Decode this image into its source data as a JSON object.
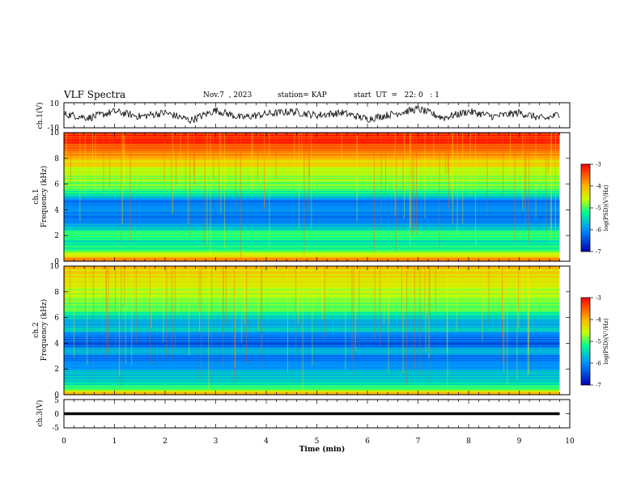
{
  "header": {
    "title": "VLF Spectra",
    "date": "Nov.7  , 2023",
    "station": "station= KAP",
    "start": "start  UT  =   22: 0   : 1"
  },
  "chart_data": [
    {
      "type": "line",
      "panel": "ch1-waveform",
      "ylabel": "ch.1(V)",
      "ylim": [
        -10,
        10
      ],
      "yticks": [
        "10",
        "-10"
      ],
      "x": [
        0,
        0.5,
        1,
        1.5,
        2,
        2.5,
        3,
        3.5,
        4,
        4.5,
        5,
        5.5,
        6,
        6.5,
        7,
        7.5,
        8,
        8.5,
        9,
        9.5,
        9.8
      ],
      "values": [
        1,
        -2,
        3,
        -1,
        2,
        -4,
        4,
        -2,
        1,
        3,
        0,
        2,
        -3,
        1,
        5,
        -2,
        3,
        -1,
        2,
        -3,
        1
      ]
    },
    {
      "type": "heatmap",
      "panel": "ch1-spectrogram",
      "ylabel": "ch.1\nFrequency (kHz)",
      "ylabel_line1": "ch.1",
      "ylabel_line2": "Frequency (kHz)",
      "ylim": [
        0,
        10
      ],
      "yticks": [
        "0",
        "2",
        "4",
        "6",
        "8",
        "10"
      ],
      "color_levels_by_frequency_kHz": [
        [
          0.0,
          -3.5
        ],
        [
          0.5,
          -4.6
        ],
        [
          1.0,
          -5.2
        ],
        [
          1.6,
          -5.4
        ],
        [
          2.1,
          -4.9
        ],
        [
          2.6,
          -5.7
        ],
        [
          3.0,
          -6.0
        ],
        [
          3.5,
          -6.2
        ],
        [
          4.0,
          -5.8
        ],
        [
          4.6,
          -6.3
        ],
        [
          5.1,
          -5.5
        ],
        [
          5.6,
          -5.0
        ],
        [
          6.1,
          -4.9
        ],
        [
          6.6,
          -4.7
        ],
        [
          7.1,
          -4.6
        ],
        [
          7.6,
          -4.3
        ],
        [
          8.1,
          -4.0
        ],
        [
          8.6,
          -3.6
        ],
        [
          9.2,
          -3.3
        ],
        [
          10.0,
          -3.2
        ]
      ],
      "colorbar": {
        "label": "log(PSD)(V²/Hz)",
        "range": [
          -7,
          -3
        ],
        "ticks": [
          "-3",
          "-4",
          "-5",
          "-6",
          "-7"
        ]
      }
    },
    {
      "type": "heatmap",
      "panel": "ch2-spectrogram",
      "ylabel": "ch.2\nFrequency (kHz)",
      "ylabel_line1": "ch.2",
      "ylabel_line2": "Frequency (kHz)",
      "ylim": [
        0,
        10
      ],
      "yticks": [
        "0",
        "2",
        "4",
        "6",
        "8",
        "10"
      ],
      "color_levels_by_frequency_kHz": [
        [
          0.0,
          -3.8
        ],
        [
          0.5,
          -5.2
        ],
        [
          1.0,
          -5.5
        ],
        [
          1.6,
          -5.6
        ],
        [
          2.1,
          -5.9
        ],
        [
          2.6,
          -6.2
        ],
        [
          3.0,
          -6.1
        ],
        [
          3.5,
          -5.7
        ],
        [
          4.0,
          -6.4
        ],
        [
          4.6,
          -6.0
        ],
        [
          5.1,
          -5.6
        ],
        [
          5.6,
          -5.9
        ],
        [
          6.1,
          -5.4
        ],
        [
          6.6,
          -5.0
        ],
        [
          7.1,
          -4.9
        ],
        [
          7.6,
          -4.8
        ],
        [
          8.1,
          -4.6
        ],
        [
          8.6,
          -4.4
        ],
        [
          9.2,
          -4.3
        ],
        [
          10.0,
          -4.2
        ]
      ],
      "colorbar": {
        "label": "log(PSD)(V²/Hz)",
        "range": [
          -7,
          -3
        ],
        "ticks": [
          "-3",
          "-4",
          "-5",
          "-6",
          "-7"
        ]
      }
    },
    {
      "type": "line",
      "panel": "ch3-waveform",
      "ylabel": "ch.3(V)",
      "ylim": [
        -5,
        5
      ],
      "yticks": [
        "5",
        "0",
        "-5"
      ],
      "x": [
        0,
        9.8
      ],
      "values": [
        0,
        0
      ],
      "band_halfwidth_V": 0.5
    }
  ],
  "xaxis": {
    "label": "Time  (min)",
    "range": [
      0,
      10
    ],
    "ticks": [
      "0",
      "1",
      "2",
      "3",
      "4",
      "5",
      "6",
      "7",
      "8",
      "9",
      "10"
    ],
    "data_end_min": 9.8
  }
}
